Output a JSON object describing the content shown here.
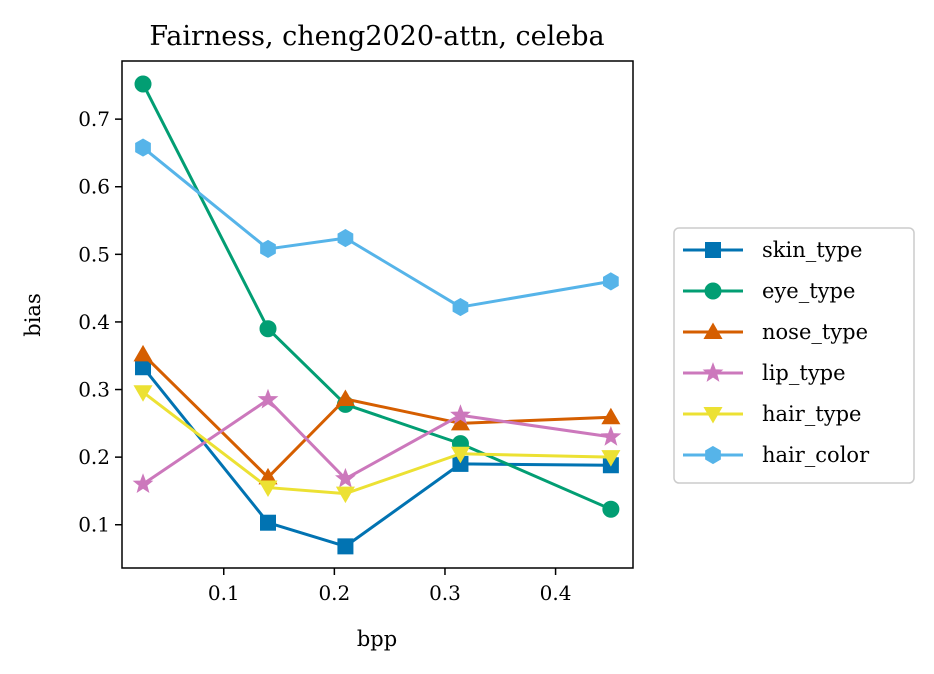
{
  "chart_data": {
    "type": "line",
    "title": "Fairness, cheng2020-attn, celeba",
    "xlabel": "bpp",
    "ylabel": "bias",
    "xlim": [
      0.008,
      0.47
    ],
    "ylim": [
      0.036,
      0.786
    ],
    "xticks": [
      0.1,
      0.2,
      0.3,
      0.4
    ],
    "xtick_labels": [
      "0.1",
      "0.2",
      "0.3",
      "0.4"
    ],
    "yticks": [
      0.1,
      0.2,
      0.3,
      0.4,
      0.5,
      0.6,
      0.7
    ],
    "ytick_labels": [
      "0.1",
      "0.2",
      "0.3",
      "0.4",
      "0.5",
      "0.6",
      "0.7"
    ],
    "grid": false,
    "legend_position": "outside-right",
    "x": [
      0.027,
      0.14,
      0.21,
      0.314,
      0.45
    ],
    "series": [
      {
        "name": "skin_type",
        "color": "#0173b2",
        "marker": "square",
        "values": [
          0.333,
          0.103,
          0.068,
          0.19,
          0.188
        ]
      },
      {
        "name": "eye_type",
        "color": "#029e73",
        "marker": "circle",
        "values": [
          0.752,
          0.39,
          0.278,
          0.22,
          0.123
        ]
      },
      {
        "name": "nose_type",
        "color": "#d55e00",
        "marker": "triangle-up",
        "values": [
          0.352,
          0.17,
          0.286,
          0.25,
          0.259
        ]
      },
      {
        "name": "lip_type",
        "color": "#cc78bc",
        "marker": "star",
        "values": [
          0.16,
          0.285,
          0.168,
          0.262,
          0.23
        ]
      },
      {
        "name": "hair_type",
        "color": "#ece133",
        "marker": "triangle-down",
        "values": [
          0.296,
          0.155,
          0.146,
          0.205,
          0.2
        ]
      },
      {
        "name": "hair_color",
        "color": "#56b4e9",
        "marker": "hexagon",
        "values": [
          0.658,
          0.508,
          0.524,
          0.422,
          0.46
        ]
      }
    ]
  }
}
